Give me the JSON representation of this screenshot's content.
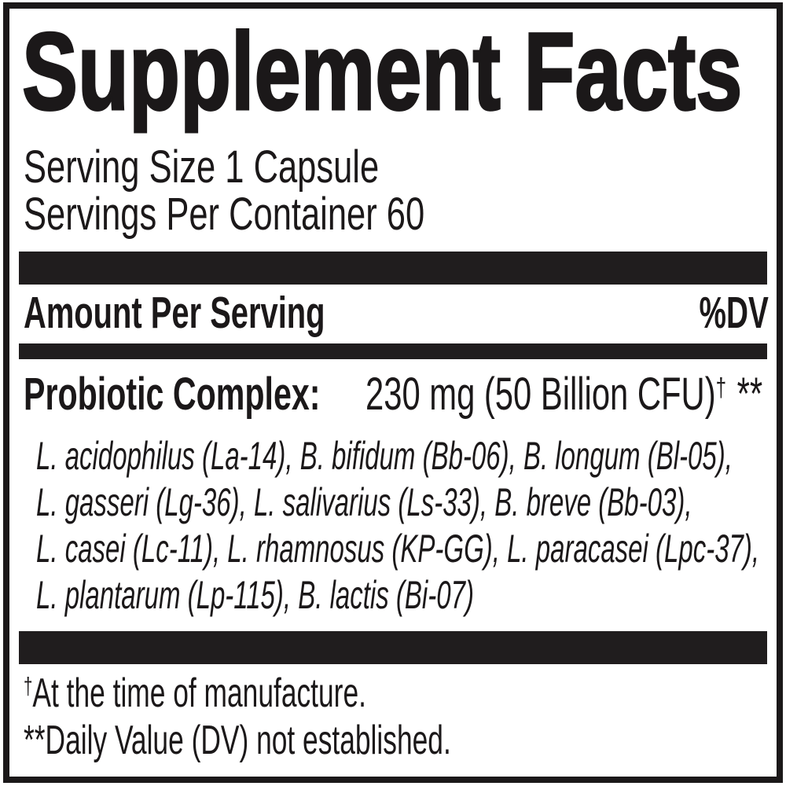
{
  "label": {
    "title": "Supplement Facts",
    "serving_size": "Serving Size 1 Capsule",
    "servings_per_container": "Servings Per Container 60",
    "columns": {
      "amount_header": "Amount Per Serving",
      "dv_header": "%DV"
    },
    "ingredient": {
      "name": "Probiotic Complex:",
      "amount": "230 mg (50 Billion CFU)",
      "amount_footnote_mark": "†",
      "daily_value": "**",
      "strains": [
        "L. acidophilus (La-14), B. bifidum (Bb-06), B. longum (Bl-05),",
        "L. gasseri (Lg-36), L. salivarius (Ls-33), B. breve (Bb-03),",
        "L. casei (Lc-11), L. rhamnosus (KP-GG), L. paracasei (Lpc-37),",
        "L. plantarum (Lp-115), B. lactis (Bi-07)"
      ]
    },
    "footnotes": [
      {
        "mark": "†",
        "text": "At the time of manufacture."
      },
      {
        "mark": "**",
        "text": "Daily Value (DV) not established."
      }
    ],
    "colors": {
      "ink": "#1b1819",
      "bar": "#201d1e",
      "background": "#ffffff"
    }
  }
}
